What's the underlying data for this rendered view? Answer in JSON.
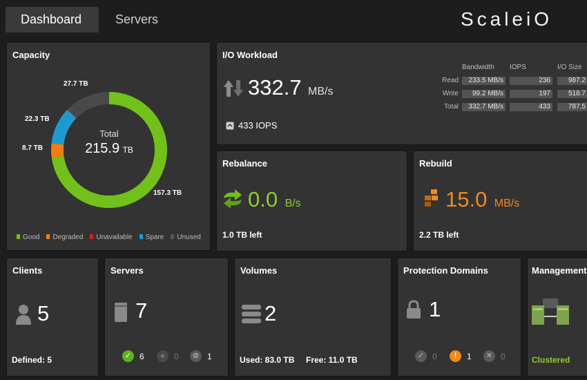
{
  "header": {
    "tabs": [
      {
        "label": "Dashboard",
        "active": true
      },
      {
        "label": "Servers",
        "active": false
      }
    ],
    "brand": "ScaleiO"
  },
  "capacity": {
    "title": "Capacity",
    "total_label": "Total",
    "total_value": "215.9",
    "total_unit": "TB",
    "segments": [
      {
        "name": "Good",
        "value": 157.3,
        "label": "157.3 TB",
        "color": "#72c11b"
      },
      {
        "name": "Degraded",
        "value": 8.7,
        "label": "8.7 TB",
        "color": "#f07f13"
      },
      {
        "name": "Unavailable",
        "value": 0,
        "label": "",
        "color": "#d2231c"
      },
      {
        "name": "Spare",
        "value": 22.3,
        "label": "22.3 TB",
        "color": "#1f9ad1"
      },
      {
        "name": "Unused",
        "value": 27.7,
        "label": "27.7 TB",
        "color": "#494949"
      }
    ]
  },
  "io": {
    "title": "I/O Workload",
    "bandwidth_value": "332.7",
    "bandwidth_unit": "MB/s",
    "iops_text": "433 IOPS",
    "columns": [
      "Bandwidth",
      "IOPS",
      "I/O Size"
    ],
    "rows": [
      {
        "label": "Read",
        "bandwidth": "233.5 MB/s",
        "iops": "236",
        "io_size": "987.2"
      },
      {
        "label": "Write",
        "bandwidth": "99.2 MB/s",
        "iops": "197",
        "io_size": "518.7"
      },
      {
        "label": "Total",
        "bandwidth": "332.7 MB/s",
        "iops": "433",
        "io_size": "787.5"
      }
    ]
  },
  "rebalance": {
    "title": "Rebalance",
    "value": "0.0",
    "unit": "B/s",
    "left": "1.0 TB left"
  },
  "rebuild": {
    "title": "Rebuild",
    "value": "15.0",
    "unit": "MB/s",
    "left": "2.2 TB left"
  },
  "clients": {
    "title": "Clients",
    "count": "5",
    "defined": "Defined: 5"
  },
  "servers": {
    "title": "Servers",
    "count": "7",
    "ok": "6",
    "degraded": "0",
    "failed": "1"
  },
  "volumes": {
    "title": "Volumes",
    "count": "2",
    "used": "Used: 83.0 TB",
    "free": "Free: 11.0 TB"
  },
  "protection": {
    "title": "Protection Domains",
    "count": "1",
    "ok": "0",
    "warning": "1",
    "error": "0"
  },
  "management": {
    "title": "Management",
    "status": "Clustered"
  }
}
